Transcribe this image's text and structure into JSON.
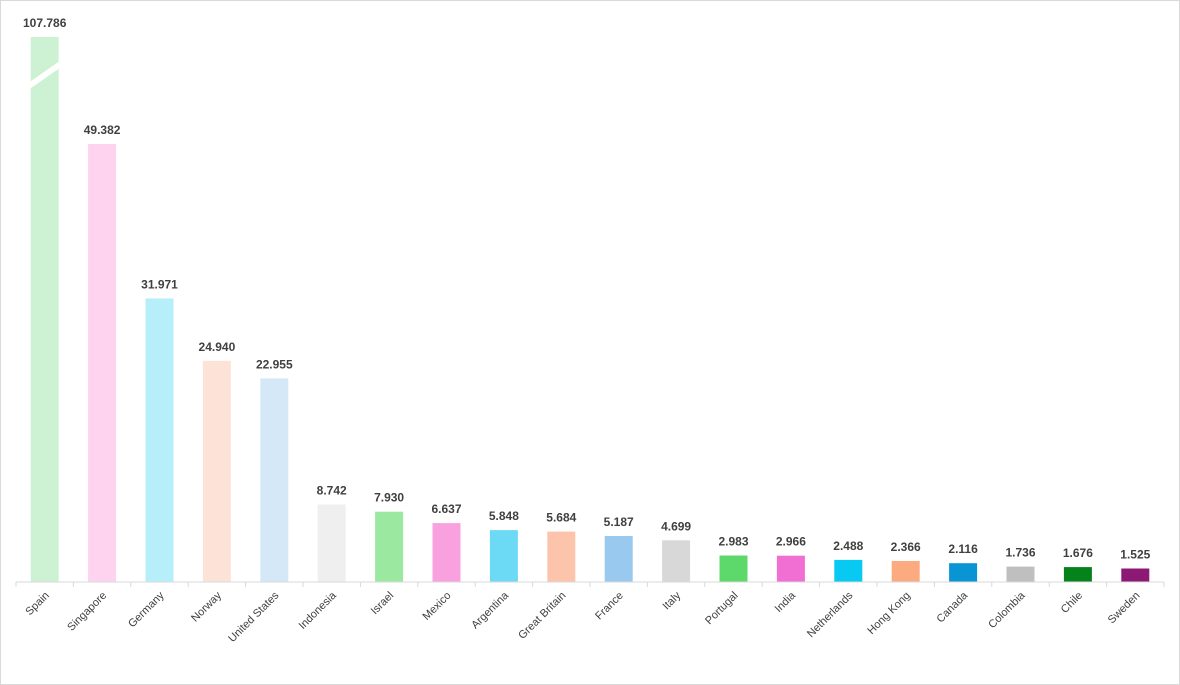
{
  "chart_data": {
    "type": "bar",
    "categories": [
      "Spain",
      "Singapore",
      "Germany",
      "Norway",
      "United States",
      "Indonesia",
      "Israel",
      "Mexico",
      "Argentina",
      "Great Britain",
      "France",
      "Italy",
      "Portugal",
      "India",
      "Netherlands",
      "Hong Kong",
      "Canada",
      "Colombia",
      "Chile",
      "Sweden"
    ],
    "values": [
      107.786,
      49.382,
      31.971,
      24.94,
      22.955,
      8.742,
      7.93,
      6.637,
      5.848,
      5.684,
      5.187,
      4.699,
      2.983,
      2.966,
      2.488,
      2.366,
      2.116,
      1.736,
      1.676,
      1.525
    ],
    "value_labels": [
      "107.786",
      "49.382",
      "31.971",
      "24.940",
      "22.955",
      "8.742",
      "7.930",
      "6.637",
      "5.848",
      "5.684",
      "5.187",
      "4.699",
      "2.983",
      "2.966",
      "2.488",
      "2.366",
      "2.116",
      "1.736",
      "1.676",
      "1.525"
    ],
    "colors": [
      "#cdf2d3",
      "#fdd3ef",
      "#b6eef9",
      "#fde3d7",
      "#d4e8f7",
      "#efefef",
      "#9be8a1",
      "#f9a0de",
      "#6ddaf5",
      "#fcc4ab",
      "#99c9ee",
      "#d8d8d8",
      "#5cd96a",
      "#f16ed2",
      "#07c9f2",
      "#fcaa80",
      "#0995d4",
      "#bfbfbf",
      "#06821b",
      "#8c1a75"
    ],
    "broken_axis_categories": [
      "Spain"
    ],
    "title": "",
    "xlabel": "",
    "ylabel": "",
    "ylim": [
      0,
      65
    ],
    "y_axis_visible": false,
    "grid": false,
    "legend": "none",
    "axis_color": "#d9d9d9",
    "label_color": "#404040"
  }
}
